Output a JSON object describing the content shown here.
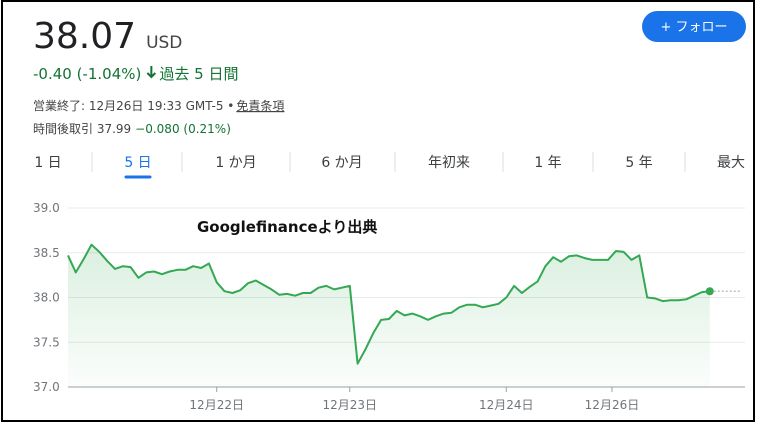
{
  "header": {
    "price": "38.07",
    "currency": "USD",
    "change": "-0.40 (-1.04%)",
    "period": "過去 5 日間",
    "closed": "営業終了: 12月26日 19:33 GMT-5 • ",
    "disclaimer": "免責条項",
    "after_hours_label": "時間後取引 37.99",
    "after_hours_change": "−0.080 (0.21%)",
    "follow_button": "+ フォロー"
  },
  "tabs": [
    "1 日",
    "5 日",
    "1 か月",
    "6 か月",
    "年初来",
    "1 年",
    "5 年",
    "最大"
  ],
  "active_tab": 1,
  "watermark": "Googlefinanceより出典",
  "chart_data": {
    "type": "line",
    "color": "#34a853",
    "grid": true,
    "values": [
      38.47,
      38.28,
      38.43,
      38.59,
      38.51,
      38.41,
      38.32,
      38.35,
      38.34,
      38.22,
      38.28,
      38.29,
      38.26,
      38.29,
      38.31,
      38.31,
      38.35,
      38.33,
      38.38,
      38.17,
      38.07,
      38.05,
      38.08,
      38.16,
      38.19,
      38.14,
      38.09,
      38.03,
      38.04,
      38.02,
      38.05,
      38.05,
      38.11,
      38.13,
      38.09,
      38.11,
      38.13,
      37.26,
      37.42,
      37.6,
      37.75,
      37.76,
      37.85,
      37.8,
      37.82,
      37.79,
      37.75,
      37.79,
      37.82,
      37.83,
      37.89,
      37.92,
      37.92,
      37.89,
      37.91,
      37.93,
      38.0,
      38.13,
      38.05,
      38.12,
      38.18,
      38.35,
      38.45,
      38.4,
      38.46,
      38.47,
      38.44,
      38.42,
      38.42,
      38.42,
      38.52,
      38.51,
      38.42,
      38.47,
      38.0,
      37.99,
      37.96,
      37.97,
      37.97,
      37.98,
      38.02,
      38.06,
      38.07
    ],
    "xlim": [
      0,
      86.5
    ],
    "xticks": [
      {
        "value": 19,
        "label": "12月22日"
      },
      {
        "value": 36,
        "label": "12月23日"
      },
      {
        "value": 56,
        "label": "12月24日"
      },
      {
        "value": 69.5,
        "label": "12月26日"
      }
    ],
    "ylim": [
      37.0,
      39.0
    ],
    "yticks": [
      {
        "value": 39.0,
        "label": "39.0"
      },
      {
        "value": 38.5,
        "label": "38.5"
      },
      {
        "value": 38.0,
        "label": "38.0"
      },
      {
        "value": 37.5,
        "label": "37.5"
      },
      {
        "value": 37.0,
        "label": "37.0"
      }
    ]
  }
}
